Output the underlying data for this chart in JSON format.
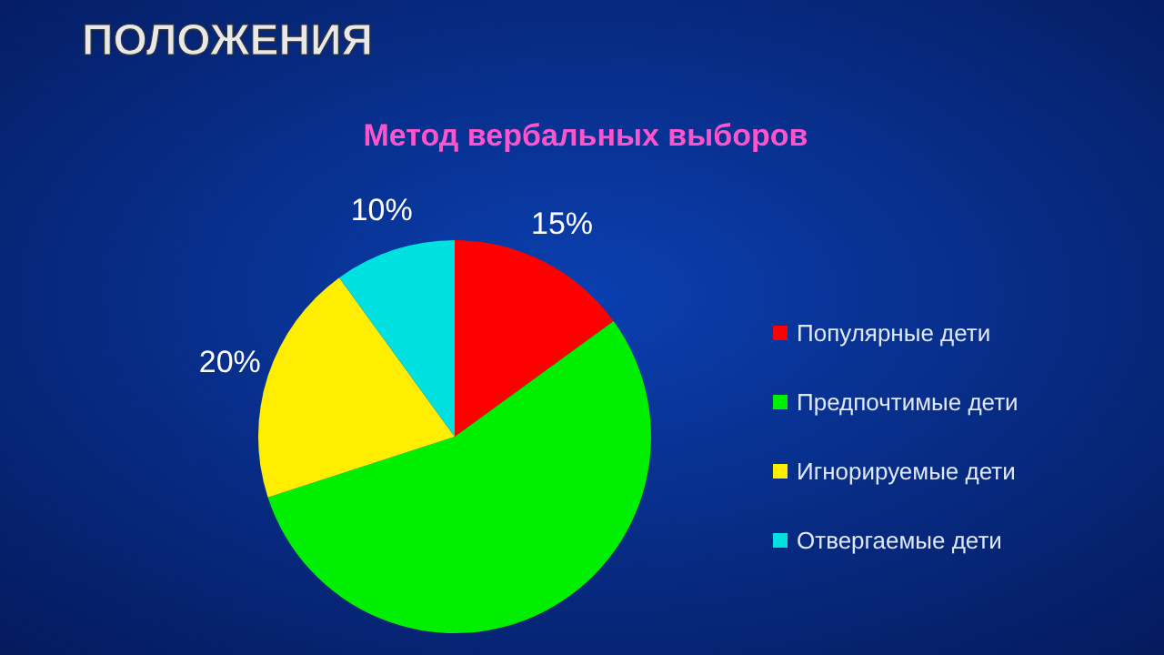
{
  "chart_data": {
    "type": "pie",
    "title": "ПОЛОЖЕНИЯ",
    "subtitle": "Метод вербальных выборов",
    "categories": [
      "Популярные дети",
      "Предпочтимые дети",
      "Игнорируемые дети",
      "Отвергаемые дети"
    ],
    "values": [
      15,
      55,
      20,
      10
    ],
    "value_labels": [
      "15%",
      null,
      "20%",
      "10%"
    ],
    "colors": [
      "#ff0000",
      "#00ee00",
      "#ffee00",
      "#00e0e0"
    ],
    "legend": "right"
  }
}
